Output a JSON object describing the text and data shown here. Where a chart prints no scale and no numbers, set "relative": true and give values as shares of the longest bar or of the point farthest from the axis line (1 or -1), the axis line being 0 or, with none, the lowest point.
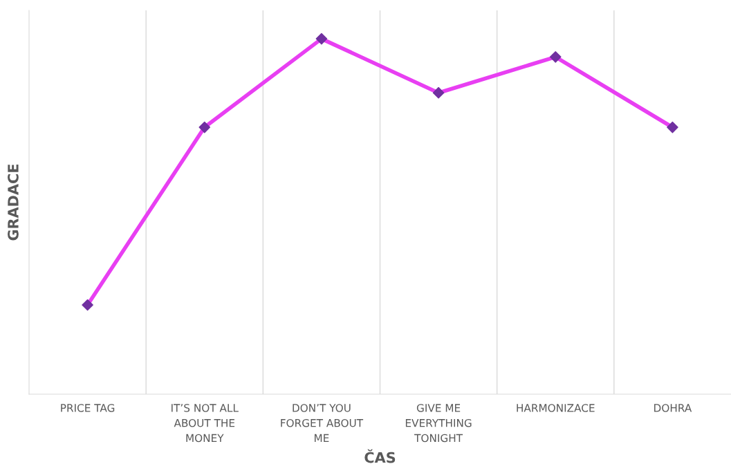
{
  "chart_data": {
    "type": "line",
    "relative": true,
    "xlabel": "ČAS",
    "ylabel": "GRADACE",
    "categories": [
      "PRICE TAG",
      "IT’S NOT ALL ABOUT THE MONEY",
      "DON’T YOU FORGET ABOUT ME",
      "GIVE ME EVERYTHING TONIGHT",
      "HARMONIZACE",
      "DOHRA"
    ],
    "series": [
      {
        "color": "#e83ff2",
        "colors": [
          "#7030a0",
          "#7030a0",
          "#7030a0",
          "#7030a0",
          "#7030a0",
          "#7030a0"
        ],
        "values": [
          0.251,
          0.751,
          1,
          0.848,
          0.949,
          0.751
        ]
      }
    ],
    "marker": "diamond",
    "line_style": "solid",
    "grid": "x",
    "legend": false
  }
}
